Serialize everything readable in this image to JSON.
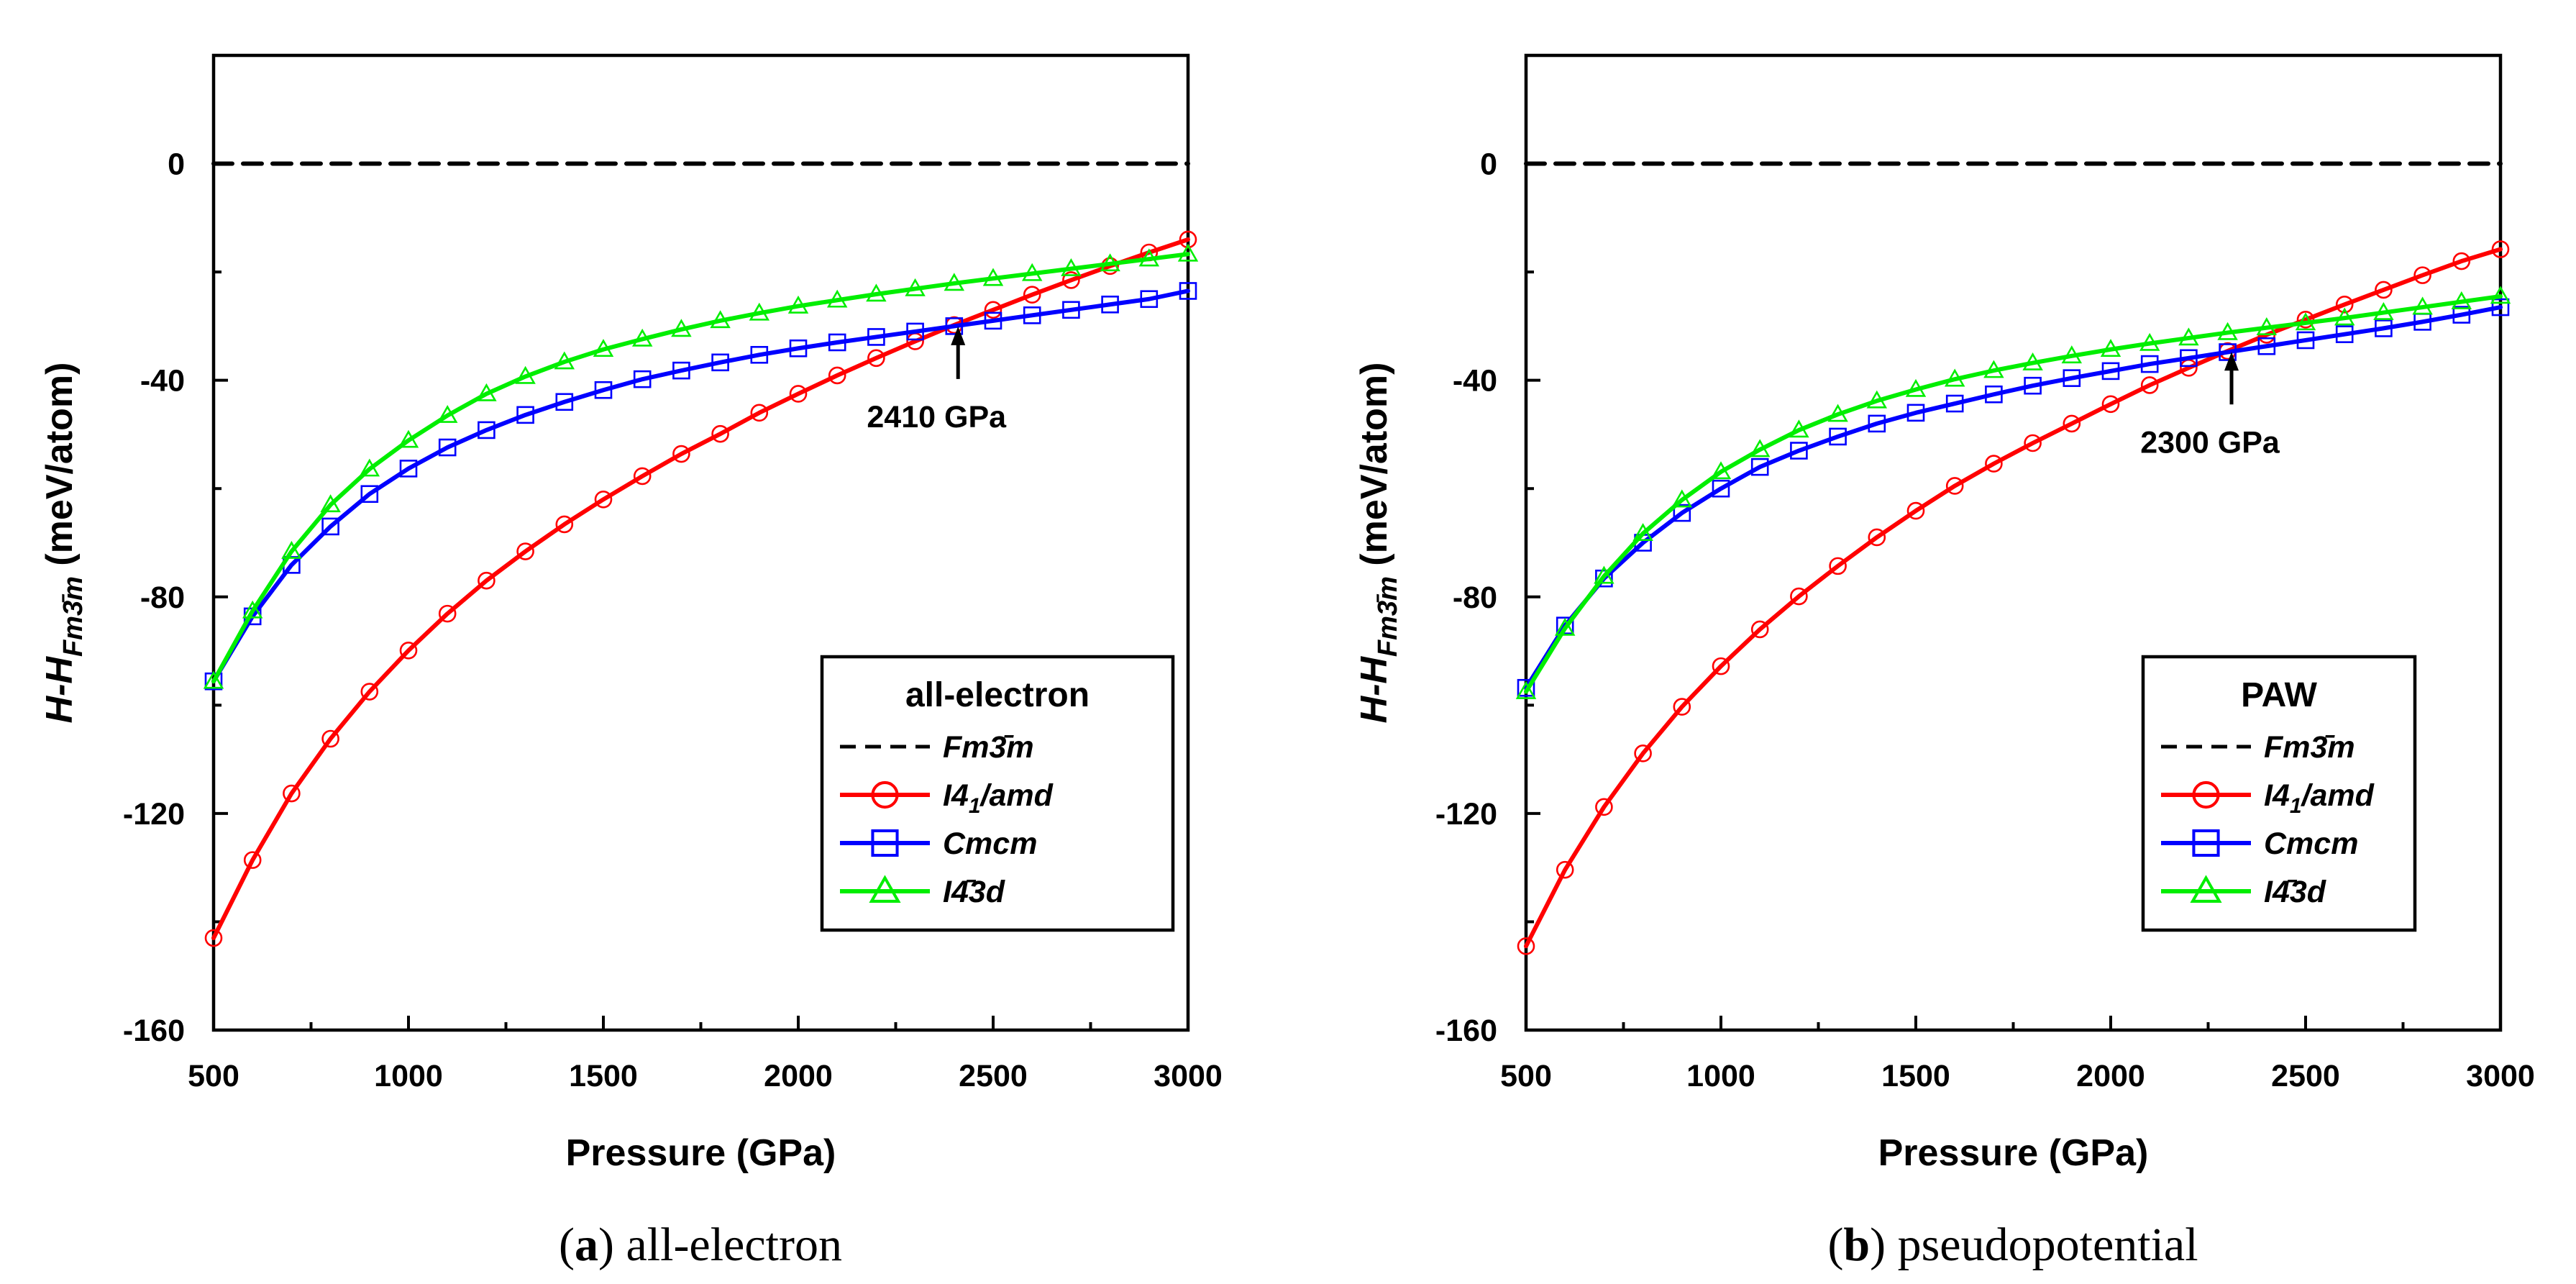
{
  "chart_data": [
    {
      "type": "line",
      "panel": "a",
      "caption_label": "a",
      "caption_text": " all-electron",
      "title": "",
      "xlabel": "Pressure (GPa)",
      "ylabel": "H-H",
      "ylabel_subscript": "Fm3̄m",
      "ylabel_units": " (meV/atom)",
      "xlim": [
        500,
        3000
      ],
      "ylim": [
        -160,
        20
      ],
      "xticks": [
        500,
        1000,
        1500,
        2000,
        2500,
        3000
      ],
      "yticks": [
        0,
        -40,
        -80,
        -120,
        -160
      ],
      "legend_title": "all-electron",
      "legend_position": "bottom-right",
      "annotation": {
        "text": "2410 GPa",
        "x": 2410,
        "y": -29.8
      },
      "x": [
        500,
        600,
        700,
        800,
        900,
        1000,
        1100,
        1200,
        1300,
        1400,
        1500,
        1600,
        1700,
        1800,
        1900,
        2000,
        2100,
        2200,
        2300,
        2400,
        2500,
        2600,
        2700,
        2800,
        2900,
        3000
      ],
      "series": [
        {
          "name": "Fm3̄m",
          "color": "#000000",
          "style": "dashed",
          "marker": "none",
          "values": [
            0,
            0,
            0,
            0,
            0,
            0,
            0,
            0,
            0,
            0,
            0,
            0,
            0,
            0,
            0,
            0,
            0,
            0,
            0,
            0,
            0,
            0,
            0,
            0,
            0,
            0
          ]
        },
        {
          "name": "I41/amd",
          "color": "#ff0000",
          "style": "solid",
          "marker": "circle",
          "values": [
            -143,
            -128.6,
            -116.3,
            -106.2,
            -97.5,
            -89.9,
            -83.1,
            -77.0,
            -71.6,
            -66.6,
            -62.0,
            -57.7,
            -53.6,
            -49.9,
            -46.0,
            -42.5,
            -39.1,
            -35.9,
            -32.8,
            -29.8,
            -27.0,
            -24.2,
            -21.5,
            -18.9,
            -16.4,
            -14.0
          ]
        },
        {
          "name": "Cmcm",
          "color": "#0000ff",
          "style": "solid",
          "marker": "square",
          "values": [
            -95.6,
            -83.6,
            -74.1,
            -67.0,
            -61.0,
            -56.3,
            -52.4,
            -49.2,
            -46.4,
            -44.0,
            -41.8,
            -39.8,
            -38.2,
            -36.7,
            -35.3,
            -34.1,
            -33.0,
            -32.0,
            -31.0,
            -30.0,
            -29.0,
            -28.0,
            -27.0,
            -26.0,
            -25.0,
            -23.5
          ]
        },
        {
          "name": "I4̄3d",
          "color": "#00ee00",
          "style": "solid",
          "marker": "triangle",
          "values": [
            -95.6,
            -82.6,
            -71.6,
            -63.0,
            -56.4,
            -51.1,
            -46.5,
            -42.5,
            -39.3,
            -36.6,
            -34.3,
            -32.4,
            -30.6,
            -29.0,
            -27.6,
            -26.3,
            -25.2,
            -24.1,
            -23.1,
            -22.1,
            -21.2,
            -20.3,
            -19.4,
            -18.5,
            -17.6,
            -16.7
          ]
        }
      ]
    },
    {
      "type": "line",
      "panel": "b",
      "caption_label": "b",
      "caption_text": " pseudopotential",
      "title": "",
      "xlabel": "Pressure (GPa)",
      "ylabel": "H-H",
      "ylabel_subscript": "Fm3̄m",
      "ylabel_units": " (meV/atom)",
      "xlim": [
        500,
        3000
      ],
      "ylim": [
        -160,
        20
      ],
      "xticks": [
        500,
        1000,
        1500,
        2000,
        2500,
        3000
      ],
      "yticks": [
        0,
        -40,
        -80,
        -120,
        -160
      ],
      "legend_title": "PAW",
      "legend_position": "bottom-right",
      "annotation": {
        "text": "2300 GPa",
        "x": 2310,
        "y": -34.5
      },
      "x": [
        500,
        600,
        700,
        800,
        900,
        1000,
        1100,
        1200,
        1300,
        1400,
        1500,
        1600,
        1700,
        1800,
        1900,
        2000,
        2100,
        2200,
        2300,
        2400,
        2500,
        2600,
        2700,
        2800,
        2900,
        3000
      ],
      "series": [
        {
          "name": "Fm3̄m",
          "color": "#000000",
          "style": "dashed",
          "marker": "none",
          "values": [
            0,
            0,
            0,
            0,
            0,
            0,
            0,
            0,
            0,
            0,
            0,
            0,
            0,
            0,
            0,
            0,
            0,
            0,
            0,
            0,
            0,
            0,
            0,
            0,
            0,
            0
          ]
        },
        {
          "name": "I41/amd",
          "color": "#ff0000",
          "style": "solid",
          "marker": "circle",
          "values": [
            -144.5,
            -130.4,
            -118.8,
            -108.9,
            -100.3,
            -92.8,
            -86.0,
            -79.9,
            -74.3,
            -69.0,
            -64.1,
            -59.5,
            -55.4,
            -51.6,
            -48.0,
            -44.4,
            -40.9,
            -37.7,
            -34.6,
            -31.6,
            -28.8,
            -26.0,
            -23.3,
            -20.6,
            -18.0,
            -15.8
          ]
        },
        {
          "name": "Cmcm",
          "color": "#0000ff",
          "style": "solid",
          "marker": "square",
          "values": [
            -96.8,
            -85.3,
            -76.6,
            -70.0,
            -64.5,
            -60.0,
            -56.0,
            -53.0,
            -50.4,
            -48.0,
            -46.0,
            -44.3,
            -42.6,
            -41.0,
            -39.6,
            -38.3,
            -37.0,
            -35.9,
            -34.8,
            -33.7,
            -32.6,
            -31.5,
            -30.4,
            -29.2,
            -27.9,
            -26.5
          ]
        },
        {
          "name": "I4̄3d",
          "color": "#00ee00",
          "style": "solid",
          "marker": "triangle",
          "values": [
            -97.5,
            -85.8,
            -76.2,
            -68.3,
            -62.1,
            -56.9,
            -52.8,
            -49.2,
            -46.3,
            -43.8,
            -41.7,
            -39.8,
            -38.2,
            -36.8,
            -35.5,
            -34.3,
            -33.2,
            -32.2,
            -31.2,
            -30.3,
            -29.4,
            -28.5,
            -27.5,
            -26.5,
            -25.5,
            -24.5
          ]
        }
      ]
    }
  ]
}
